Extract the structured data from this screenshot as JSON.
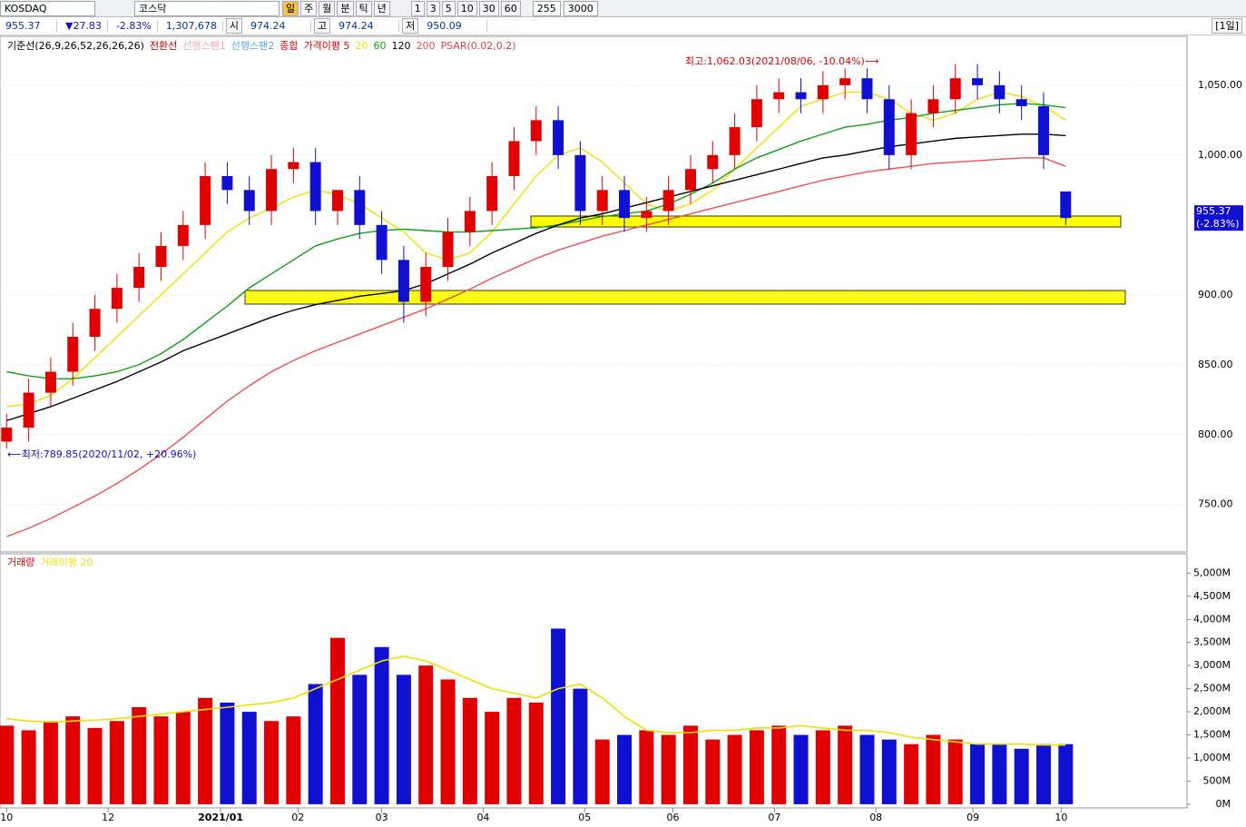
{
  "toolbar": {
    "symbol": "KOSDAQ",
    "name": "코스닥",
    "periods": [
      "일",
      "주",
      "월",
      "분",
      "틱",
      "년"
    ],
    "intervals": [
      "1",
      "3",
      "5",
      "10",
      "30",
      "60"
    ],
    "count": "255",
    "total": "3000"
  },
  "info": {
    "price": "955.37",
    "change": "▼27.83",
    "rate": "-2.83%",
    "volume": "1,307,678",
    "open_label": "시",
    "open": "974.24",
    "high_label": "고",
    "high": "974.24",
    "low_label": "저",
    "low": "950.09",
    "span": "[1일]"
  },
  "chart_data": [
    {
      "type": "candlestick",
      "legend": [
        {
          "label": "기준선(26,9,26,52,26,26,26)",
          "color": "#000000"
        },
        {
          "label": "전환선",
          "color": "#c00000"
        },
        {
          "label": "선행스팬1",
          "color": "#f4a6b0"
        },
        {
          "label": "선행스팬2",
          "color": "#5aa9e6"
        },
        {
          "label": "종합",
          "color": "#e00000"
        },
        {
          "label": "가격이평 5",
          "color": "#e00000"
        },
        {
          "label": "20",
          "color": "#f0e000"
        },
        {
          "label": "60",
          "color": "#10a010"
        },
        {
          "label": "120",
          "color": "#000000"
        },
        {
          "label": "200",
          "color": "#f05050"
        },
        {
          "label": "PSAR(0.02,0.2)",
          "color": "#e04040"
        }
      ],
      "annotations": [
        "최고:1,062.03(2021/08/06, -10.04%)⟶",
        "⟵최저:789.85(2020/11/02, +20.96%)"
      ],
      "last_label": "955.37",
      "last_rate": "(-2.83%)",
      "xlim": [
        -0.3,
        53.5
      ],
      "xticks": [
        {
          "value": 0,
          "label": "10"
        },
        {
          "value": 4.6,
          "label": "12"
        },
        {
          "value": 9.7,
          "label": "2021/01"
        },
        {
          "value": 13.2,
          "label": "02"
        },
        {
          "value": 17,
          "label": "03"
        },
        {
          "value": 21.6,
          "label": "04"
        },
        {
          "value": 26.2,
          "label": "05"
        },
        {
          "value": 30.2,
          "label": "06"
        },
        {
          "value": 34.8,
          "label": "07"
        },
        {
          "value": 39.4,
          "label": "08"
        },
        {
          "value": 43.8,
          "label": "09"
        },
        {
          "value": 47.8,
          "label": "10"
        }
      ],
      "ylim": [
        718,
        1085
      ],
      "yticks": [
        {
          "value": 750,
          "label": "750.00"
        },
        {
          "value": 800,
          "label": "800.00"
        },
        {
          "value": 850,
          "label": "850.00"
        },
        {
          "value": 900,
          "label": "900.00"
        },
        {
          "value": 1000,
          "label": "1,000.00"
        },
        {
          "value": 1050,
          "label": "1,050.00"
        }
      ],
      "up_color": "#e00000",
      "down_color": "#1010d0",
      "open": [
        795,
        805,
        830,
        845,
        870,
        890,
        905,
        920,
        935,
        950,
        985,
        975,
        960,
        990,
        995,
        960,
        975,
        950,
        925,
        895,
        920,
        945,
        960,
        985,
        1010,
        1025,
        1000,
        960,
        975,
        955,
        960,
        975,
        990,
        1000,
        1020,
        1040,
        1045,
        1040,
        1050,
        1055,
        1040,
        1000,
        1030,
        1040,
        1055,
        1050,
        1040,
        1035,
        974
      ],
      "high": [
        815,
        840,
        855,
        880,
        900,
        915,
        930,
        945,
        960,
        995,
        995,
        985,
        1000,
        1005,
        1005,
        975,
        985,
        960,
        935,
        930,
        955,
        970,
        995,
        1020,
        1035,
        1035,
        1010,
        985,
        985,
        970,
        985,
        1000,
        1010,
        1030,
        1050,
        1055,
        1055,
        1060,
        1062,
        1062,
        1050,
        1040,
        1050,
        1065,
        1065,
        1060,
        1050,
        1045,
        974
      ],
      "low": [
        790,
        795,
        820,
        835,
        860,
        880,
        895,
        910,
        925,
        940,
        965,
        950,
        950,
        980,
        950,
        950,
        940,
        915,
        880,
        885,
        910,
        935,
        950,
        975,
        1000,
        990,
        950,
        950,
        945,
        945,
        950,
        965,
        980,
        990,
        1010,
        1030,
        1030,
        1030,
        1040,
        1030,
        990,
        990,
        1020,
        1030,
        1040,
        1030,
        1025,
        990,
        950
      ],
      "close": [
        805,
        830,
        845,
        870,
        890,
        905,
        920,
        935,
        950,
        985,
        975,
        960,
        990,
        995,
        960,
        975,
        950,
        925,
        895,
        920,
        945,
        960,
        985,
        1010,
        1025,
        1000,
        960,
        975,
        955,
        960,
        975,
        990,
        1000,
        1020,
        1040,
        1045,
        1040,
        1050,
        1055,
        1040,
        1000,
        1030,
        1040,
        1055,
        1050,
        1040,
        1035,
        1000,
        955
      ],
      "series": [
        {
          "name": "20",
          "color": "#f0e000",
          "values": [
            820,
            822,
            828,
            840,
            855,
            870,
            885,
            900,
            915,
            930,
            945,
            955,
            962,
            970,
            975,
            972,
            965,
            955,
            945,
            930,
            925,
            930,
            945,
            965,
            985,
            1000,
            1005,
            995,
            980,
            965,
            960,
            965,
            975,
            990,
            1005,
            1020,
            1035,
            1040,
            1045,
            1045,
            1040,
            1030,
            1025,
            1030,
            1040,
            1045,
            1042,
            1035,
            1025
          ]
        },
        {
          "name": "60",
          "color": "#10a010",
          "values": [
            845,
            842,
            840,
            840,
            842,
            845,
            850,
            858,
            868,
            880,
            892,
            905,
            915,
            925,
            935,
            940,
            944,
            946,
            947,
            946,
            945,
            945,
            946,
            947,
            948,
            950,
            953,
            956,
            958,
            960,
            965,
            972,
            980,
            990,
            998,
            1004,
            1010,
            1015,
            1020,
            1022,
            1025,
            1027,
            1030,
            1032,
            1034,
            1036,
            1037,
            1036,
            1034
          ]
        },
        {
          "name": "120",
          "color": "#000000",
          "values": [
            810,
            815,
            820,
            826,
            832,
            838,
            845,
            852,
            860,
            866,
            872,
            878,
            884,
            889,
            893,
            896,
            899,
            901,
            903,
            908,
            915,
            922,
            930,
            937,
            944,
            950,
            955,
            958,
            962,
            966,
            970,
            974,
            978,
            982,
            986,
            990,
            994,
            998,
            1000,
            1003,
            1006,
            1008,
            1010,
            1012,
            1013,
            1014,
            1015,
            1015,
            1014
          ]
        },
        {
          "name": "200",
          "color": "#f05050",
          "values": [
            727,
            733,
            740,
            748,
            756,
            765,
            775,
            786,
            798,
            811,
            824,
            835,
            845,
            853,
            860,
            866,
            872,
            878,
            884,
            890,
            897,
            904,
            912,
            919,
            926,
            932,
            937,
            942,
            946,
            950,
            954,
            958,
            962,
            966,
            970,
            974,
            978,
            982,
            985,
            988,
            990,
            992,
            994,
            995,
            996,
            997,
            998,
            998,
            992
          ]
        }
      ]
    },
    {
      "type": "bar",
      "legend": [
        {
          "label": "거래량",
          "color": "#e00000"
        },
        {
          "label": "거래이평 20",
          "color": "#f0e000"
        }
      ],
      "xlim": [
        -0.3,
        53.5
      ],
      "ylim": [
        -80,
        5380
      ],
      "yticks": [
        {
          "value": 0,
          "label": "0M"
        },
        {
          "value": 500,
          "label": "500M"
        },
        {
          "value": 1000,
          "label": "1,000M"
        },
        {
          "value": 1500,
          "label": "1,500M"
        },
        {
          "value": 2000,
          "label": "2,000M"
        },
        {
          "value": 2500,
          "label": "2,500M"
        },
        {
          "value": 3000,
          "label": "3,000M"
        },
        {
          "value": 3500,
          "label": "3,500M"
        },
        {
          "value": 4000,
          "label": "4,000M"
        },
        {
          "value": 4500,
          "label": "4,500M"
        },
        {
          "value": 5000,
          "label": "5,000M"
        }
      ],
      "values": [
        1700,
        1600,
        1800,
        1900,
        1650,
        1800,
        2100,
        1900,
        2000,
        2300,
        2200,
        2000,
        1800,
        1900,
        2600,
        3600,
        2800,
        3400,
        2800,
        3000,
        2700,
        2300,
        2000,
        2300,
        2200,
        3800,
        2500,
        1400,
        1500,
        1600,
        1500,
        1700,
        1400,
        1500,
        1600,
        1700,
        1500,
        1600,
        1700,
        1500,
        1400,
        1300,
        1500,
        1400,
        1300,
        1300,
        1200,
        1300,
        1300
      ],
      "ma": [
        1850,
        1800,
        1780,
        1800,
        1820,
        1850,
        1900,
        1950,
        2000,
        2050,
        2100,
        2150,
        2200,
        2300,
        2500,
        2700,
        2900,
        3100,
        3200,
        3100,
        2900,
        2700,
        2500,
        2400,
        2300,
        2500,
        2600,
        2300,
        1900,
        1600,
        1550,
        1550,
        1600,
        1600,
        1650,
        1650,
        1700,
        1650,
        1600,
        1600,
        1550,
        1450,
        1400,
        1350,
        1300,
        1300,
        1300,
        1280,
        1280
      ]
    }
  ]
}
